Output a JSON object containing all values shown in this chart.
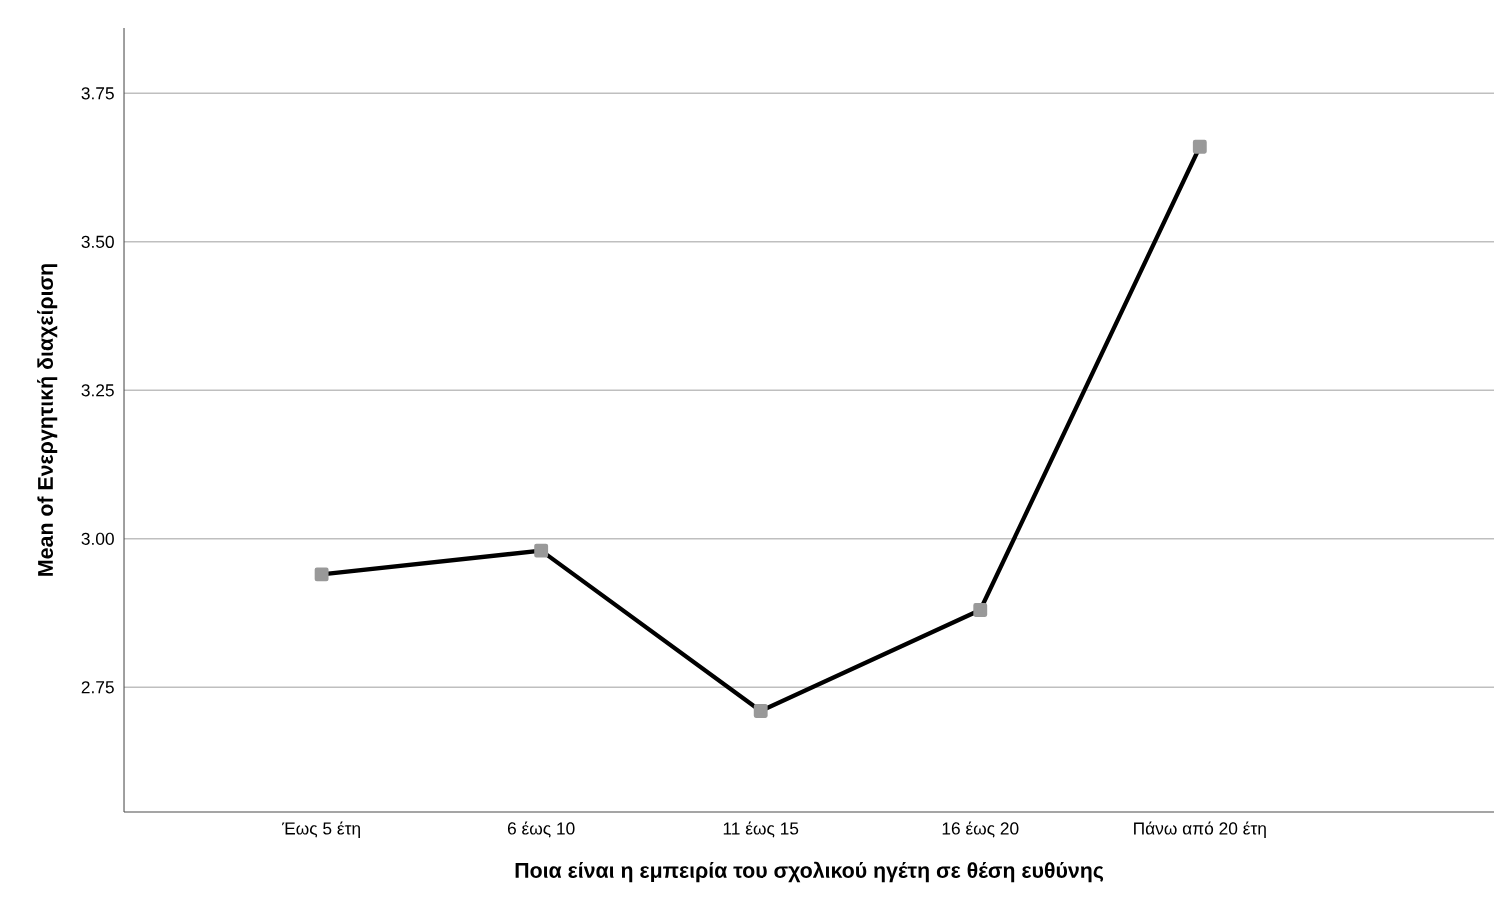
{
  "chart_data": {
    "type": "line",
    "xlabel": "Ποια είναι η εμπειρία του σχολικού ηγέτη σε θέση ευθύνης",
    "ylabel": "Mean of Ενεργητική διαχείριση",
    "categories": [
      "Έως 5 έτη",
      "6 έως 10",
      "11 έως 15",
      "16 έως 20",
      "Πάνω από 20 έτη"
    ],
    "series": [
      {
        "color": "#000000",
        "values": [
          2.94,
          2.98,
          2.71,
          2.88,
          3.66
        ]
      }
    ],
    "ylim": [
      2.54,
      3.86
    ],
    "yticks": [
      {
        "value": 2.75,
        "label": "2.75"
      },
      {
        "value": 3.0,
        "label": "3.00"
      },
      {
        "value": 3.25,
        "label": "3.25"
      },
      {
        "value": 3.5,
        "label": "3.50"
      },
      {
        "value": 3.75,
        "label": "3.75"
      }
    ],
    "grid": "y",
    "marker": "square",
    "line_style": "solid"
  }
}
